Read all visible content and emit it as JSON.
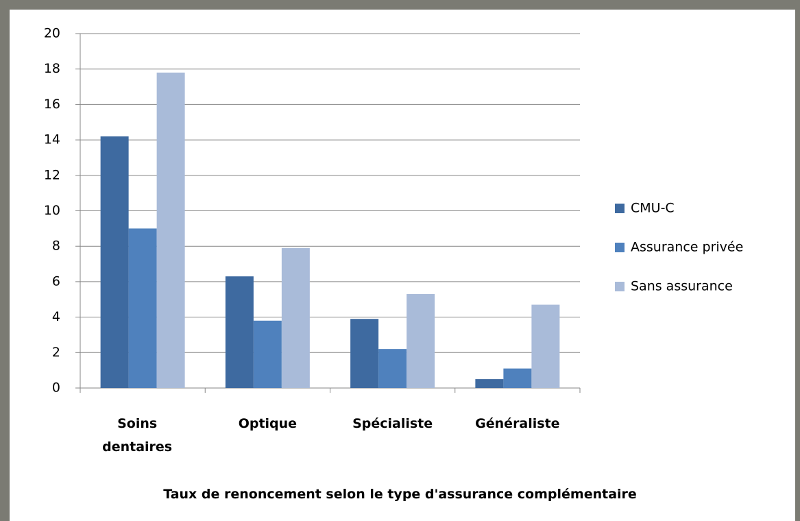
{
  "chart_data": {
    "type": "bar",
    "title": "Taux de renoncement selon le type d'assurance  complémentaire",
    "categories": [
      "Soins dentaires",
      "Optique",
      "Spécialiste",
      "Généraliste"
    ],
    "series": [
      {
        "name": "CMU-C",
        "color": "#3e6aa0",
        "values": [
          14.2,
          6.3,
          3.9,
          0.5
        ]
      },
      {
        "name": "Assurance privée",
        "color": "#4f81bd",
        "values": [
          9.0,
          3.8,
          2.2,
          1.1
        ]
      },
      {
        "name": "Sans assurance",
        "color": "#a9bbd9",
        "values": [
          17.8,
          7.9,
          5.3,
          4.7
        ]
      }
    ],
    "ylim": [
      0,
      20
    ],
    "yticks": [
      0,
      2,
      4,
      6,
      8,
      10,
      12,
      14,
      16,
      18,
      20
    ],
    "grid": true,
    "legend": "right"
  }
}
